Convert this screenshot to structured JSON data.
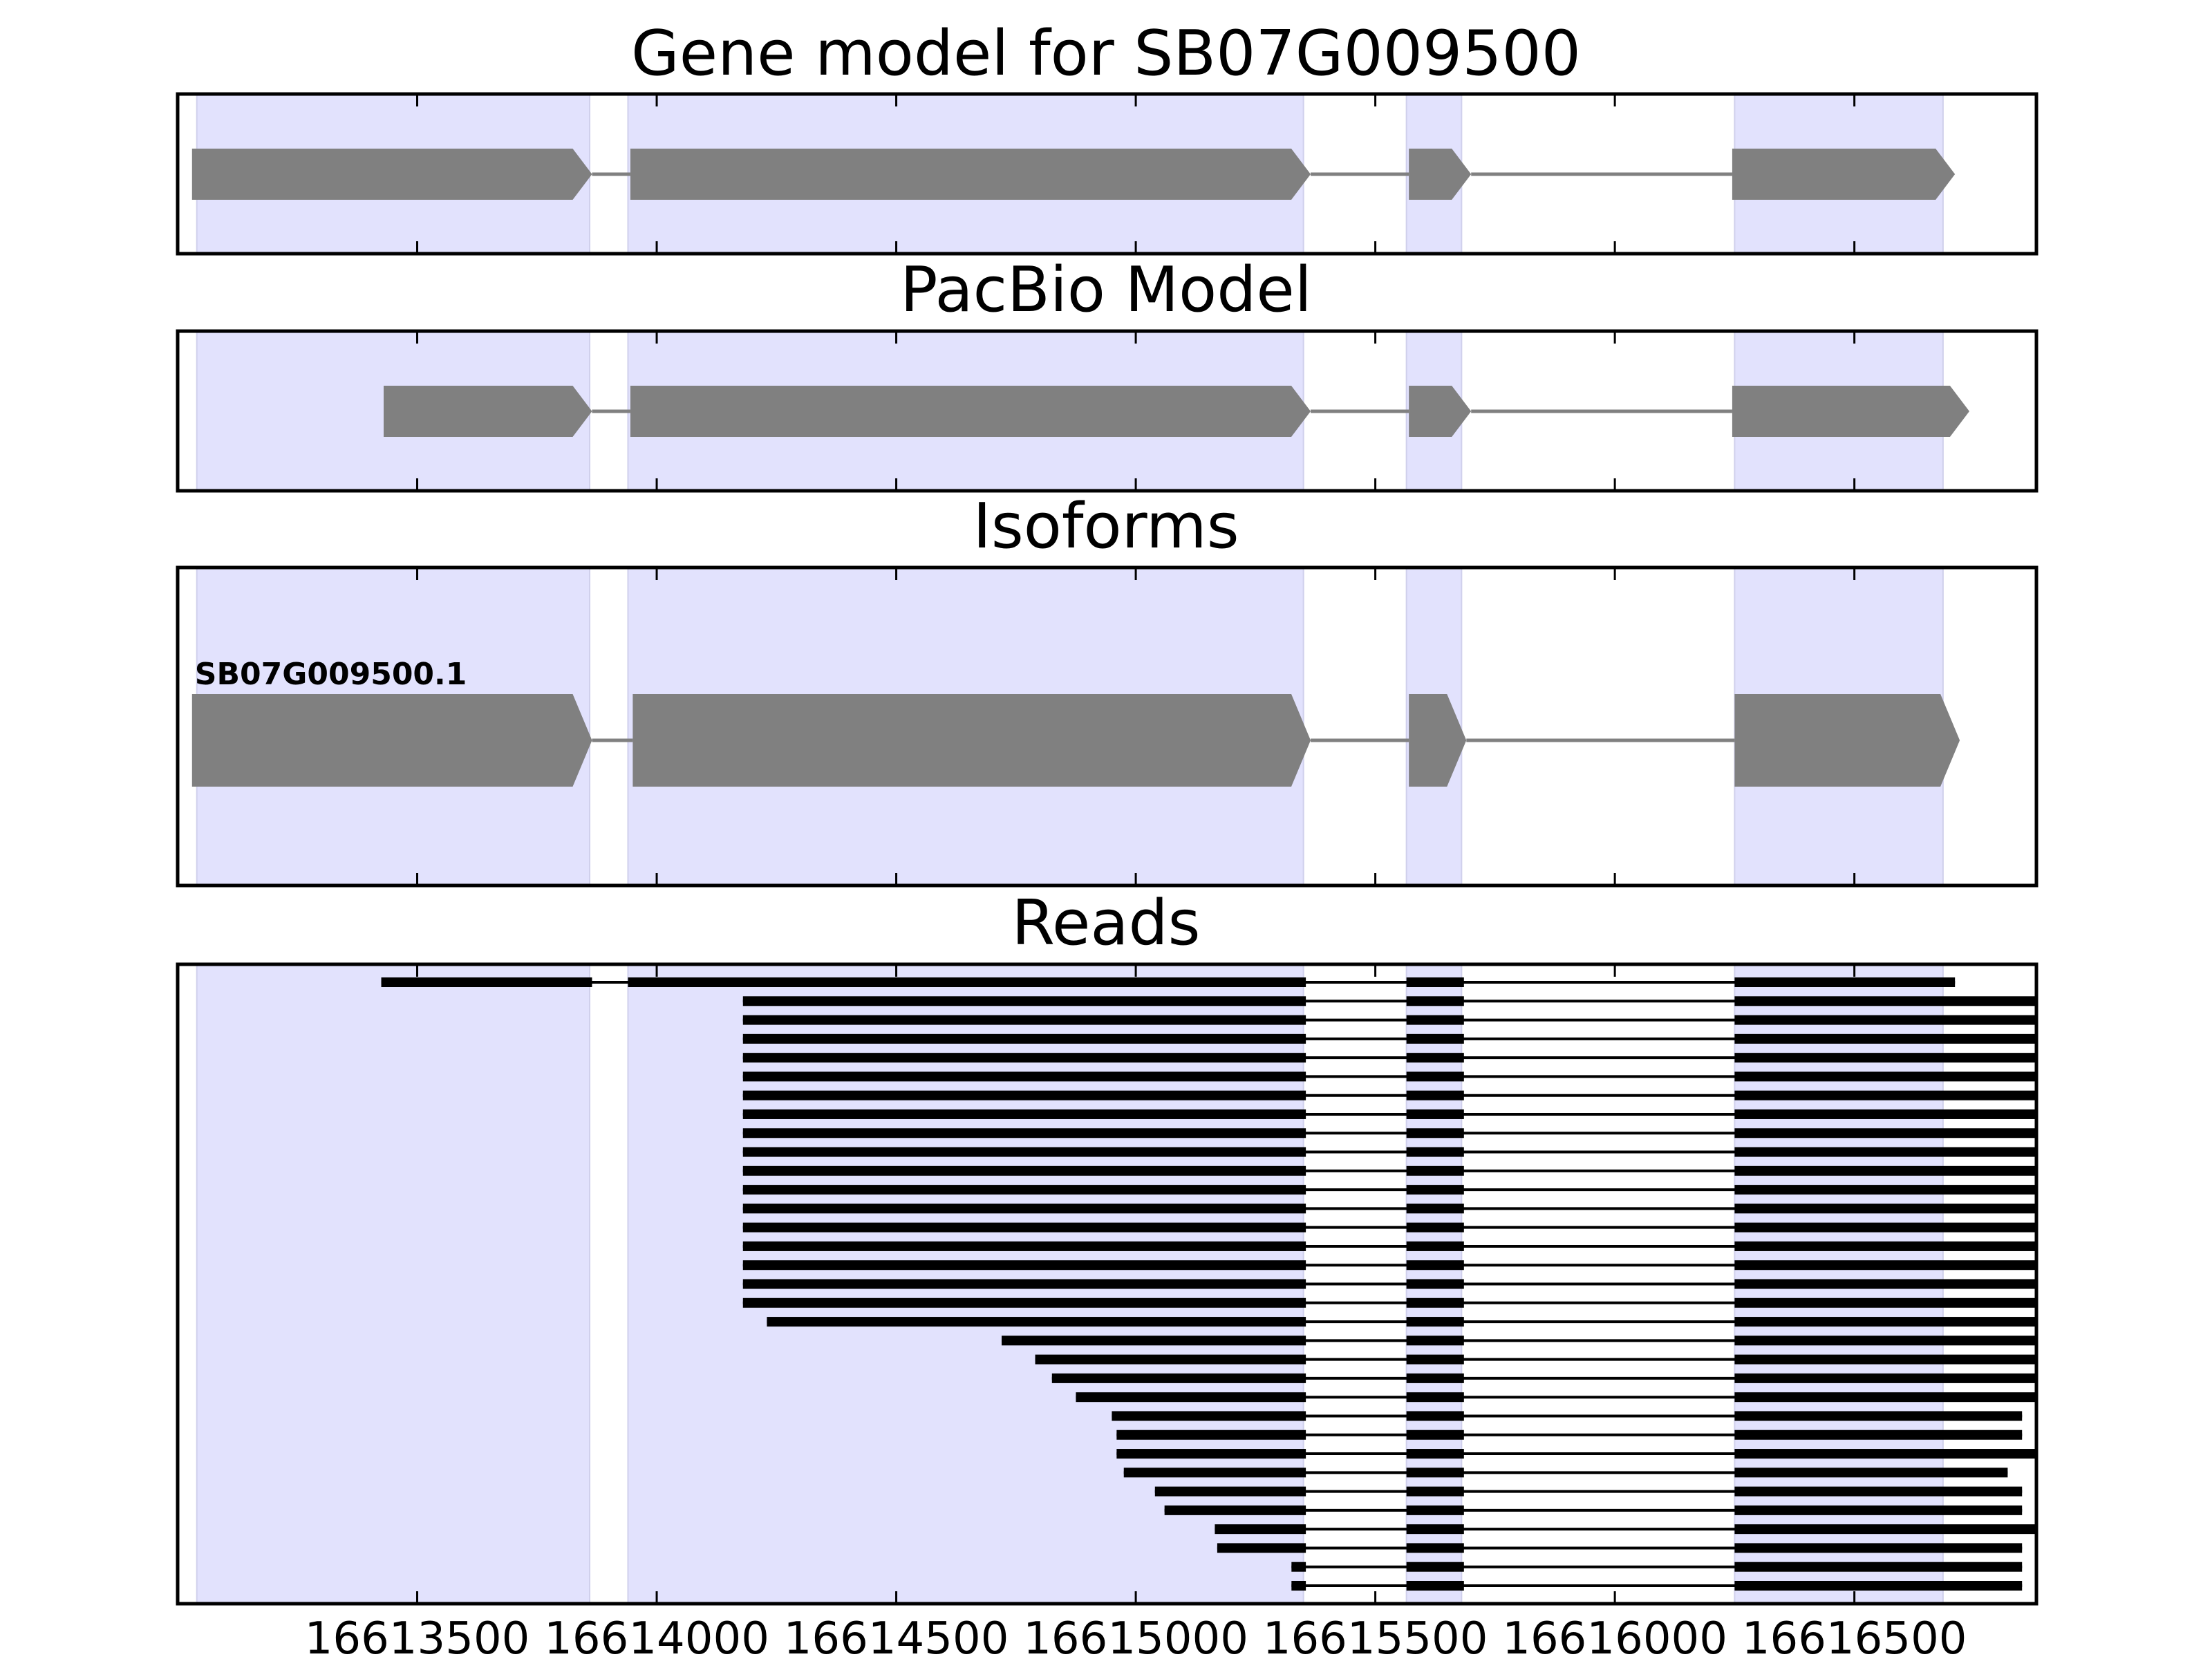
{
  "colors": {
    "exon_band": "#e2e2fd",
    "feature": "#808080",
    "read": "#000000",
    "axes": "#000000"
  },
  "chart_data": {
    "type": "gene-structure",
    "xlim": [
      16613000,
      16616880
    ],
    "xticks": [
      16613500,
      16614000,
      16614500,
      16615000,
      16615500,
      16616000,
      16616500
    ],
    "tick_labels": [
      "16613500",
      "16614000",
      "16614500",
      "16615000",
      "16615500",
      "16616000",
      "16616500"
    ],
    "exon_bands": [
      [
        16613040,
        16613860
      ],
      [
        16613940,
        16615350
      ],
      [
        16615565,
        16615680
      ],
      [
        16616250,
        16616685
      ]
    ],
    "panels": [
      {
        "title": "Gene model for SB07G009500",
        "models": [
          {
            "label": "",
            "exons": [
              [
                16613030,
                16613865
              ],
              [
                16613945,
                16615365
              ],
              [
                16615570,
                16615700
              ],
              [
                16616245,
                16616710
              ]
            ]
          }
        ]
      },
      {
        "title": "PacBio Model",
        "models": [
          {
            "label": "",
            "exons": [
              [
                16613430,
                16613865
              ],
              [
                16613945,
                16615365
              ],
              [
                16615570,
                16615700
              ],
              [
                16616245,
                16616740
              ]
            ]
          }
        ]
      },
      {
        "title": "Isoforms",
        "models": [
          {
            "label": "SB07G009500.1",
            "exons": [
              [
                16613030,
                16613865
              ],
              [
                16613950,
                16615365
              ],
              [
                16615570,
                16615690
              ],
              [
                16616250,
                16616720
              ]
            ]
          }
        ]
      },
      {
        "title": "Reads",
        "reads": [
          {
            "start": 16613425,
            "end": 16616710
          },
          {
            "start": 16614180,
            "end": 16616880
          },
          {
            "start": 16614180,
            "end": 16616880
          },
          {
            "start": 16614180,
            "end": 16616880
          },
          {
            "start": 16614180,
            "end": 16616880
          },
          {
            "start": 16614180,
            "end": 16616880
          },
          {
            "start": 16614180,
            "end": 16616880
          },
          {
            "start": 16614180,
            "end": 16616880
          },
          {
            "start": 16614180,
            "end": 16616880
          },
          {
            "start": 16614180,
            "end": 16616880
          },
          {
            "start": 16614180,
            "end": 16616880
          },
          {
            "start": 16614180,
            "end": 16616880
          },
          {
            "start": 16614180,
            "end": 16616880
          },
          {
            "start": 16614180,
            "end": 16616880
          },
          {
            "start": 16614180,
            "end": 16616880
          },
          {
            "start": 16614180,
            "end": 16616880
          },
          {
            "start": 16614180,
            "end": 16616880
          },
          {
            "start": 16614180,
            "end": 16616880
          },
          {
            "start": 16614230,
            "end": 16616880
          },
          {
            "start": 16614720,
            "end": 16616880
          },
          {
            "start": 16614790,
            "end": 16616880
          },
          {
            "start": 16614825,
            "end": 16616880
          },
          {
            "start": 16614875,
            "end": 16616880
          },
          {
            "start": 16614950,
            "end": 16616850
          },
          {
            "start": 16614960,
            "end": 16616850
          },
          {
            "start": 16614960,
            "end": 16616880
          },
          {
            "start": 16614975,
            "end": 16616820
          },
          {
            "start": 16615040,
            "end": 16616850
          },
          {
            "start": 16615060,
            "end": 16616850
          },
          {
            "start": 16615165,
            "end": 16616880
          },
          {
            "start": 16615170,
            "end": 16616850
          },
          {
            "start": 16615325,
            "end": 16616850
          },
          {
            "start": 16615325,
            "end": 16616850
          }
        ]
      }
    ]
  }
}
